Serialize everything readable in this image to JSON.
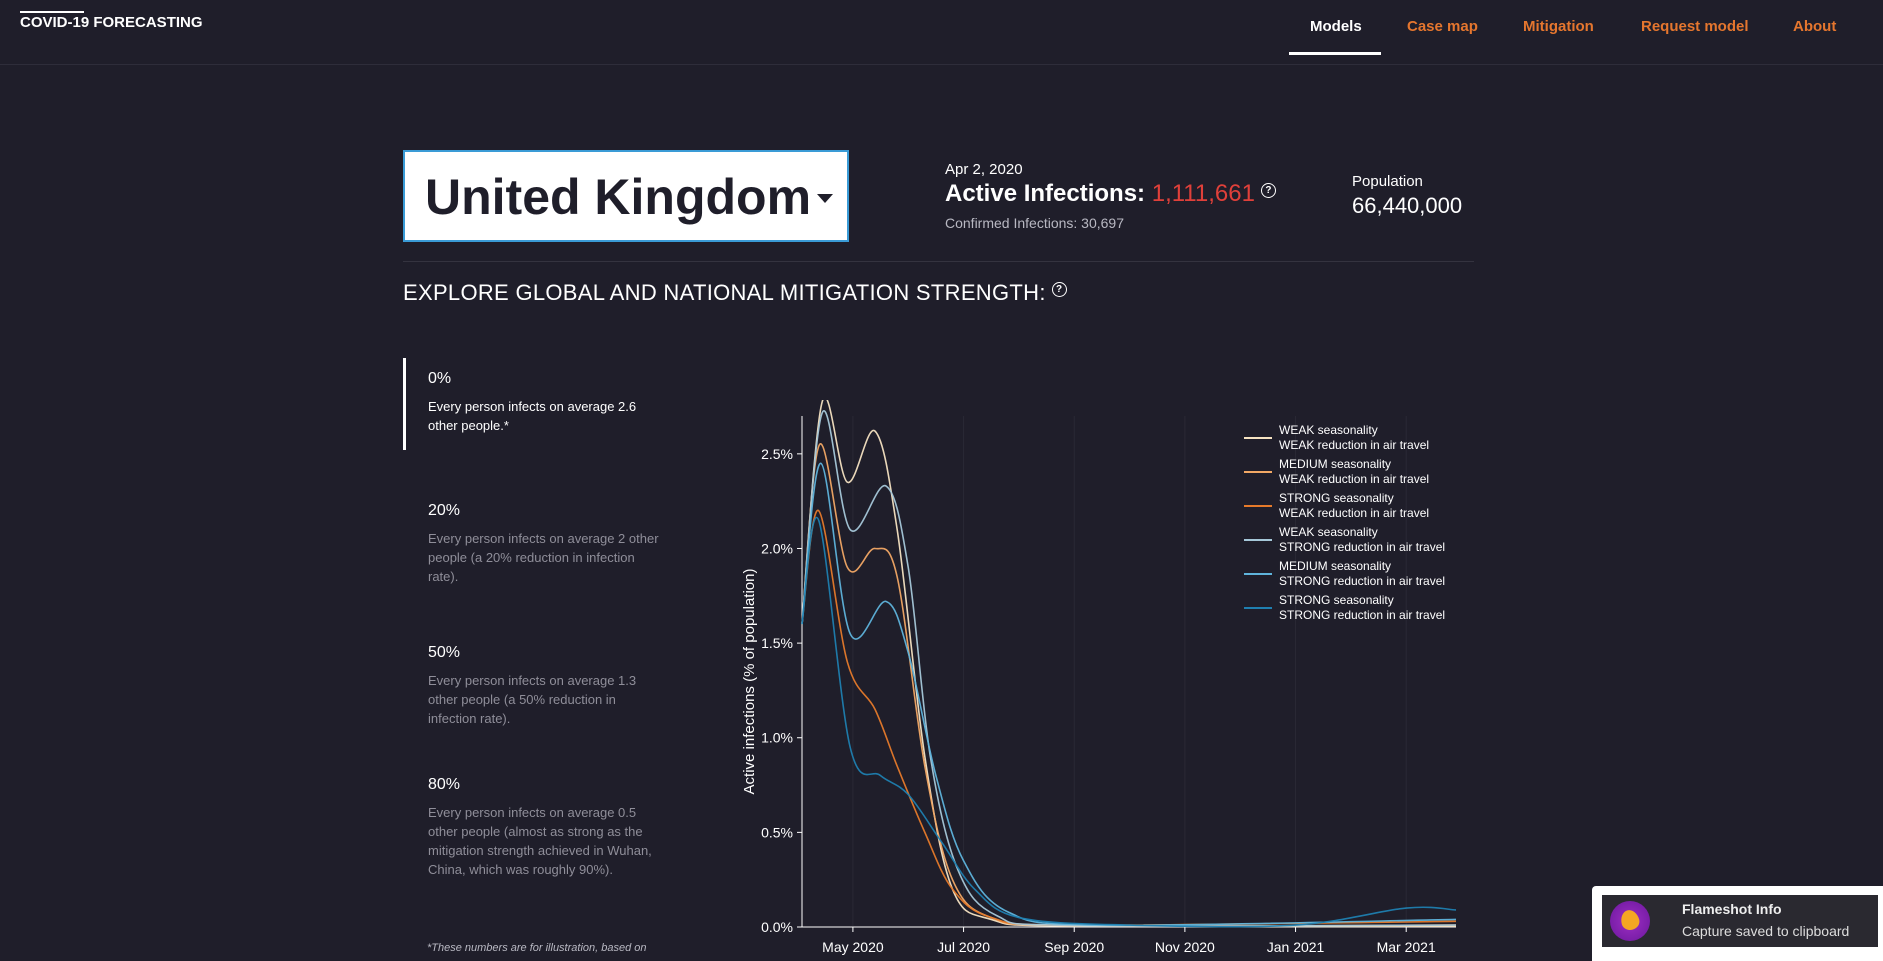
{
  "nav": {
    "brand": "COVID-19 FORECASTING",
    "items": [
      {
        "label": "Models",
        "active": true
      },
      {
        "label": "Case map",
        "active": false
      },
      {
        "label": "Mitigation",
        "active": false
      },
      {
        "label": "Request model",
        "active": false
      },
      {
        "label": "About",
        "active": false
      }
    ]
  },
  "country": {
    "selected": "United Kingdom"
  },
  "stats": {
    "date": "Apr 2, 2020",
    "active_label": "Active Infections:",
    "active_value": "1,111,661",
    "confirmed": "Confirmed Infections: 30,697",
    "population_label": "Population",
    "population_value": "66,440,000"
  },
  "section_title": "EXPLORE GLOBAL AND NATIONAL MITIGATION STRENGTH:",
  "mitigation": [
    {
      "pct": "0%",
      "desc": "Every person infects on average 2.6 other people.*",
      "active": true
    },
    {
      "pct": "20%",
      "desc": "Every person infects on average 2 other people (a 20% reduction in infection rate).",
      "active": false
    },
    {
      "pct": "50%",
      "desc": "Every person infects on average 1.3 other people (a 50% reduction in infection rate).",
      "active": false
    },
    {
      "pct": "80%",
      "desc": "Every person infects on average 0.5 other people (almost as strong as the mitigation strength achieved in Wuhan, China, which was roughly 90%).",
      "active": false
    }
  ],
  "footnote": "*These numbers are for illustration, based on",
  "chart_data": {
    "type": "line",
    "ylabel": "Active infections (% of population)",
    "ylim": [
      0,
      2.7
    ],
    "yticks": [
      "0.0%",
      "0.5%",
      "1.0%",
      "1.5%",
      "2.0%",
      "2.5%"
    ],
    "yvalues": [
      0,
      0.5,
      1.0,
      1.5,
      2.0,
      2.5
    ],
    "xticks": [
      "May 2020",
      "Jul 2020",
      "Sep 2020",
      "Nov 2020",
      "Jan 2021",
      "Mar 2021"
    ],
    "xtick_months": [
      1,
      3,
      5,
      7,
      9,
      11
    ],
    "xlim_months": [
      0.08,
      11.9
    ],
    "legend_position": "top-right",
    "series": [
      {
        "name": "WEAK seasonality\nWEAK reduction in air travel",
        "color": "#f6e3c2",
        "points": [
          [
            0.08,
            1.6
          ],
          [
            0.45,
            2.78
          ],
          [
            0.9,
            2.35
          ],
          [
            1.4,
            2.62
          ],
          [
            1.8,
            2.1
          ],
          [
            2.3,
            0.9
          ],
          [
            2.8,
            0.2
          ],
          [
            3.5,
            0.04
          ],
          [
            5,
            0.005
          ],
          [
            11.9,
            0.005
          ]
        ]
      },
      {
        "name": "MEDIUM seasonality\nWEAK reduction in air travel",
        "color": "#f2a865",
        "points": [
          [
            0.08,
            1.6
          ],
          [
            0.4,
            2.55
          ],
          [
            0.9,
            1.9
          ],
          [
            1.4,
            2.0
          ],
          [
            1.8,
            1.85
          ],
          [
            2.3,
            0.85
          ],
          [
            2.8,
            0.25
          ],
          [
            3.5,
            0.05
          ],
          [
            5,
            0.008
          ],
          [
            11.9,
            0.01
          ]
        ]
      },
      {
        "name": "STRONG seasonality\nWEAK reduction in air travel",
        "color": "#e67a2a",
        "points": [
          [
            0.08,
            1.6
          ],
          [
            0.38,
            2.2
          ],
          [
            0.9,
            1.4
          ],
          [
            1.4,
            1.15
          ],
          [
            1.8,
            0.85
          ],
          [
            2.3,
            0.5
          ],
          [
            2.8,
            0.2
          ],
          [
            3.5,
            0.05
          ],
          [
            5,
            0.01
          ],
          [
            11.9,
            0.03
          ]
        ]
      },
      {
        "name": "WEAK seasonality\nSTRONG reduction in air travel",
        "color": "#a6c8d9",
        "points": [
          [
            0.08,
            1.6
          ],
          [
            0.45,
            2.72
          ],
          [
            0.95,
            2.1
          ],
          [
            1.6,
            2.33
          ],
          [
            2.0,
            1.9
          ],
          [
            2.4,
            0.9
          ],
          [
            2.9,
            0.3
          ],
          [
            3.6,
            0.06
          ],
          [
            5,
            0.008
          ],
          [
            11.9,
            0.01
          ]
        ]
      },
      {
        "name": "MEDIUM seasonality\nSTRONG reduction in air travel",
        "color": "#5fb4dc",
        "points": [
          [
            0.08,
            1.6
          ],
          [
            0.42,
            2.45
          ],
          [
            0.95,
            1.55
          ],
          [
            1.6,
            1.72
          ],
          [
            2.0,
            1.45
          ],
          [
            2.5,
            0.8
          ],
          [
            3.0,
            0.35
          ],
          [
            3.8,
            0.08
          ],
          [
            5.5,
            0.01
          ],
          [
            11.9,
            0.04
          ]
        ]
      },
      {
        "name": "STRONG seasonality\nSTRONG reduction in air travel",
        "color": "#1f7fb0",
        "points": [
          [
            0.08,
            1.6
          ],
          [
            0.38,
            2.15
          ],
          [
            0.95,
            0.95
          ],
          [
            1.5,
            0.8
          ],
          [
            2.0,
            0.7
          ],
          [
            2.6,
            0.45
          ],
          [
            3.2,
            0.2
          ],
          [
            4.0,
            0.05
          ],
          [
            6,
            0.01
          ],
          [
            9,
            0.01
          ],
          [
            11.0,
            0.1
          ],
          [
            11.9,
            0.09
          ]
        ]
      }
    ]
  },
  "toast": {
    "title": "Flameshot Info",
    "message": "Capture saved to clipboard"
  }
}
